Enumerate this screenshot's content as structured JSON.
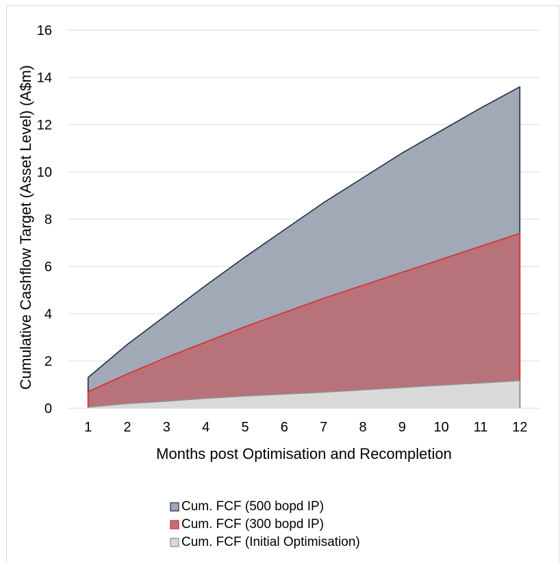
{
  "chart_data": {
    "type": "area",
    "title": "",
    "xlabel": "Months post Optimisation and Recompletion",
    "ylabel": "Cumulative Cashflow Target (Asset Level) (A$m)",
    "x": [
      1,
      2,
      3,
      4,
      5,
      6,
      7,
      8,
      9,
      10,
      11,
      12
    ],
    "xticks": [
      "1",
      "2",
      "3",
      "4",
      "5",
      "6",
      "7",
      "8",
      "9",
      "10",
      "11",
      "12"
    ],
    "ylim": [
      0,
      16
    ],
    "yticks": [
      "0",
      "2",
      "4",
      "6",
      "8",
      "10",
      "12",
      "14",
      "16"
    ],
    "grid": "horizontal",
    "legend_position": "bottom",
    "series": [
      {
        "name": "Cum. FCF (500 bopd IP)",
        "color": "#a0a9b5",
        "line_color": "#1f2d45",
        "values": [
          1.3,
          2.7,
          3.95,
          5.2,
          6.4,
          7.55,
          8.7,
          9.75,
          10.8,
          11.75,
          12.7,
          13.6
        ]
      },
      {
        "name": "Cum. FCF (300 bopd IP)",
        "color": "#b8737a",
        "line_color": "#e0262e",
        "values": [
          0.7,
          1.45,
          2.15,
          2.8,
          3.45,
          4.05,
          4.65,
          5.2,
          5.75,
          6.3,
          6.85,
          7.4
        ]
      },
      {
        "name": "Cum. FCF (Initial Optimisation)",
        "color": "#d9d9d9",
        "line_color": "#8c8c8c",
        "values": [
          0.05,
          0.2,
          0.3,
          0.42,
          0.52,
          0.6,
          0.68,
          0.78,
          0.88,
          0.98,
          1.07,
          1.17
        ]
      }
    ]
  }
}
